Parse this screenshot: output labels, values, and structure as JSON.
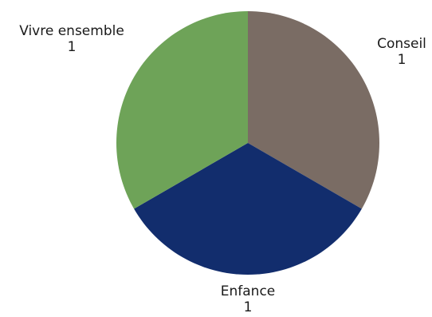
{
  "chart_data": {
    "type": "pie",
    "title": "",
    "slices": [
      {
        "label": "Conseil",
        "value": 1,
        "value_text": "1",
        "color": "#7a6c64"
      },
      {
        "label": "Enfance",
        "value": 1,
        "value_text": "1",
        "color": "#122d6d"
      },
      {
        "label": "Vivre ensemble",
        "value": 1,
        "value_text": "1",
        "color": "#6ea358"
      }
    ],
    "start_angle_deg": 0,
    "direction": "clockwise",
    "labels_position": "outside"
  }
}
